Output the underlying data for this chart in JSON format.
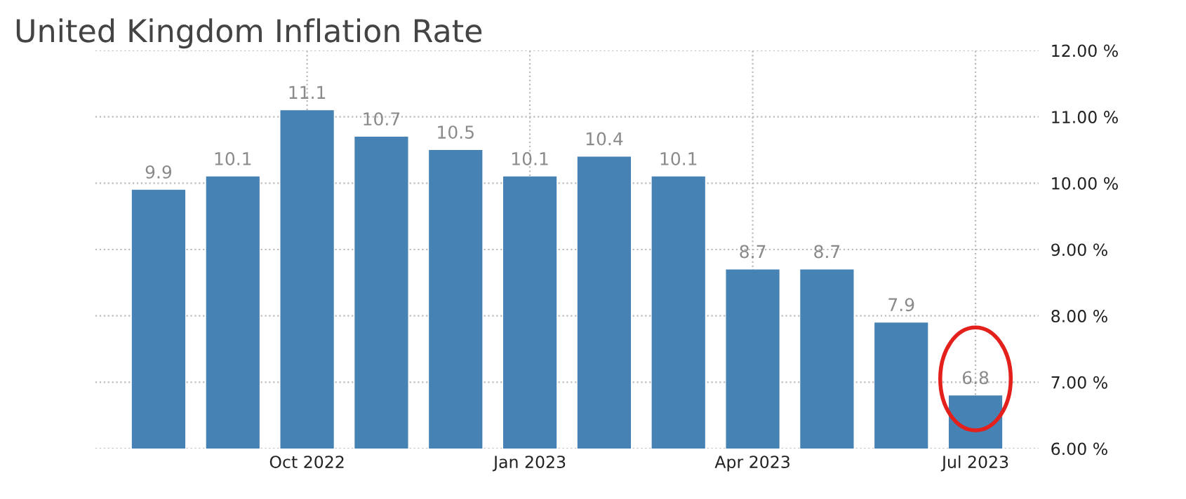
{
  "chart_data": {
    "type": "bar",
    "title": "United Kingdom Inflation Rate",
    "categories": [
      null,
      null,
      "Oct 2022",
      null,
      null,
      "Jan 2023",
      null,
      null,
      "Apr 2023",
      null,
      null,
      "Jul 2023"
    ],
    "values": [
      9.9,
      10.1,
      11.1,
      10.7,
      10.5,
      10.1,
      10.4,
      10.1,
      8.7,
      8.7,
      7.9,
      6.8
    ],
    "color": "#4682b4",
    "data_labels": true,
    "ylim": [
      6,
      12
    ],
    "yticks": [
      {
        "value": 6,
        "label": "6.00 %"
      },
      {
        "value": 7,
        "label": "7.00 %"
      },
      {
        "value": 8,
        "label": "8.00 %"
      },
      {
        "value": 9,
        "label": "9.00 %"
      },
      {
        "value": 10,
        "label": "10.00 %"
      },
      {
        "value": 11,
        "label": "11.00 %"
      },
      {
        "value": 12,
        "label": "12.00 %"
      }
    ],
    "grid": true
  }
}
